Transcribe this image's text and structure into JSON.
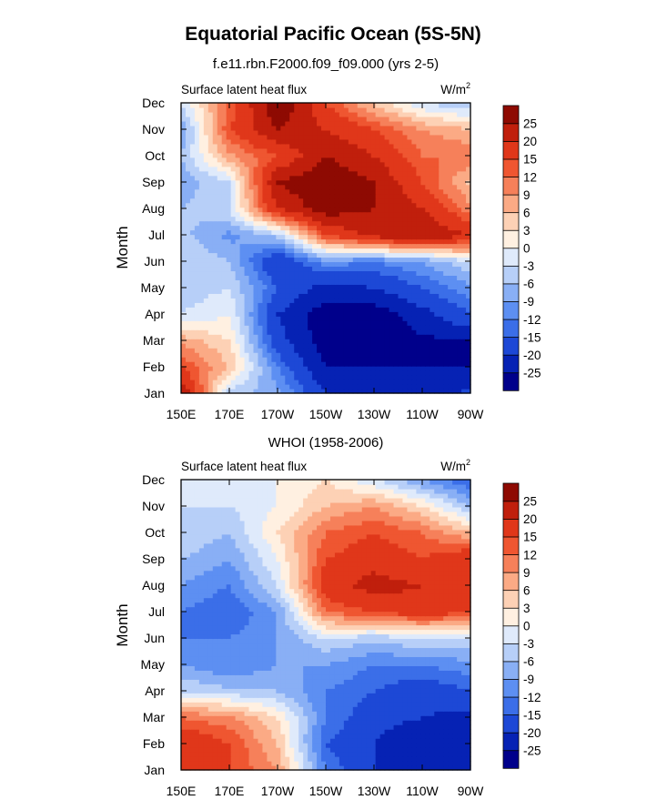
{
  "figure_title": "Equatorial Pacific Ocean (5S-5N)",
  "colorbar_colors": [
    "#00008b",
    "#0622b4",
    "#1d48d6",
    "#3b6ee8",
    "#5d8ff2",
    "#89aff5",
    "#b7cff8",
    "#dfeafb",
    "#fff0e1",
    "#fdd1b5",
    "#fbaa85",
    "#f6805a",
    "#ef5631",
    "#e0371a",
    "#c01f0c",
    "#8e0a02"
  ],
  "chart_data": [
    {
      "type": "heatmap",
      "subtitle": "f.e11.rbn.F2000.f09_f09.000 (yrs 2-5)",
      "left_label": "Surface latent heat flux",
      "right_label_base": "W/m",
      "right_label_sup": "2",
      "ylabel": "Month",
      "x_ticks": [
        "150E",
        "170E",
        "170W",
        "150W",
        "130W",
        "110W",
        "90W"
      ],
      "y_ticks": [
        "Jan",
        "Feb",
        "Mar",
        "Apr",
        "May",
        "Jun",
        "Jul",
        "Aug",
        "Sep",
        "Oct",
        "Nov",
        "Dec"
      ],
      "xlim": [
        "150E",
        "90W"
      ],
      "contour_levels": [
        -25,
        -20,
        -15,
        -12,
        -9,
        -6,
        -3,
        0,
        3,
        6,
        9,
        12,
        15,
        20,
        25
      ],
      "x_lon": [
        150,
        170,
        190,
        210,
        230,
        250,
        270
      ],
      "z": [
        [
          25,
          -5,
          -8,
          -20,
          -25,
          -25,
          -18
        ],
        [
          15,
          6,
          -12,
          -25,
          -25,
          -25,
          -25
        ],
        [
          8,
          3,
          -18,
          -28,
          -28,
          -26,
          -25
        ],
        [
          -3,
          0,
          -20,
          -28,
          -28,
          -22,
          -15
        ],
        [
          -5,
          -3,
          -15,
          -22,
          -20,
          -15,
          -10
        ],
        [
          -3,
          -6,
          -20,
          -10,
          -12,
          -9,
          -3
        ],
        [
          -5,
          -10,
          -5,
          15,
          22,
          25,
          20
        ],
        [
          -6,
          -3,
          20,
          28,
          25,
          20,
          10
        ],
        [
          -8,
          -3,
          25,
          30,
          25,
          15,
          5
        ],
        [
          -6,
          8,
          15,
          25,
          20,
          12,
          12
        ],
        [
          -9,
          15,
          25,
          20,
          15,
          9,
          6
        ],
        [
          -3,
          12,
          30,
          15,
          5,
          -3,
          -6
        ]
      ]
    },
    {
      "type": "heatmap",
      "subtitle": "WHOI (1958-2006)",
      "left_label": "Surface latent heat flux",
      "right_label_base": "W/m",
      "right_label_sup": "2",
      "ylabel": "Month",
      "x_ticks": [
        "150E",
        "170E",
        "170W",
        "150W",
        "130W",
        "110W",
        "90W"
      ],
      "y_ticks": [
        "Jan",
        "Feb",
        "Mar",
        "Apr",
        "May",
        "Jun",
        "Jul",
        "Aug",
        "Sep",
        "Oct",
        "Nov",
        "Dec"
      ],
      "xlim": [
        "150E",
        "90W"
      ],
      "contour_levels": [
        -25,
        -20,
        -15,
        -12,
        -9,
        -6,
        -3,
        0,
        3,
        6,
        9,
        12,
        15,
        20,
        25
      ],
      "x_lon": [
        150,
        170,
        190,
        210,
        230,
        250,
        270
      ],
      "z": [
        [
          15,
          15,
          9,
          -12,
          -20,
          -22,
          -25
        ],
        [
          20,
          15,
          6,
          -15,
          -20,
          -25,
          -25
        ],
        [
          12,
          10,
          3,
          -12,
          -18,
          -20,
          -22
        ],
        [
          -3,
          -5,
          -6,
          -12,
          -15,
          -18,
          -15
        ],
        [
          -9,
          -12,
          -9,
          -9,
          -12,
          -12,
          -10
        ],
        [
          -12,
          -12,
          -9,
          -3,
          -5,
          -3,
          -3
        ],
        [
          -12,
          -15,
          -9,
          12,
          15,
          18,
          15
        ],
        [
          -9,
          -12,
          -3,
          18,
          22,
          20,
          20
        ],
        [
          -6,
          -9,
          0,
          15,
          18,
          15,
          20
        ],
        [
          -3,
          -6,
          3,
          12,
          15,
          12,
          6
        ],
        [
          -3,
          -3,
          0,
          6,
          9,
          3,
          -6
        ],
        [
          -3,
          -3,
          0,
          3,
          -3,
          -9,
          -15
        ]
      ]
    }
  ]
}
